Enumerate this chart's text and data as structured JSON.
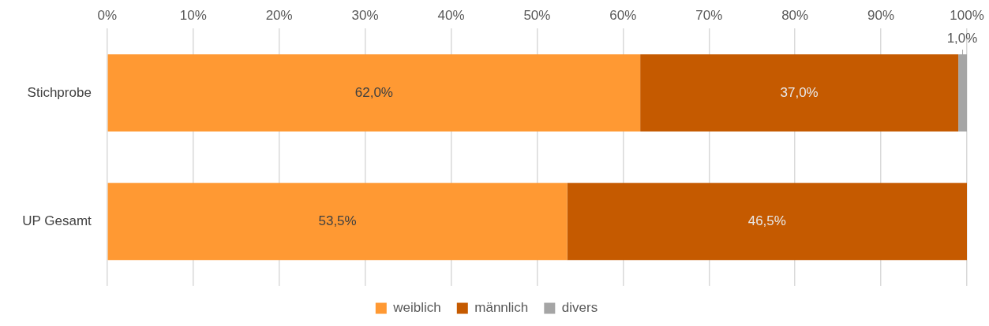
{
  "chart_data": {
    "type": "bar",
    "orientation": "horizontal",
    "stacked": true,
    "categories": [
      "Stichprobe",
      "UP Gesamt"
    ],
    "series": [
      {
        "name": "weiblich",
        "color": "#ff9933",
        "values": [
          62.0,
          53.5
        ],
        "value_labels": [
          "62,0%",
          "53,5%"
        ]
      },
      {
        "name": "männlich",
        "color": "#c55a00",
        "values": [
          37.0,
          46.5
        ],
        "value_labels": [
          "37,0%",
          "46,5%"
        ]
      },
      {
        "name": "divers",
        "color": "#a5a5a5",
        "values": [
          1.0,
          null
        ],
        "value_labels": [
          "1,0%",
          null
        ]
      }
    ],
    "xlim": [
      0,
      100
    ],
    "xticks": [
      {
        "value": 0,
        "label": "0%"
      },
      {
        "value": 10,
        "label": "10%"
      },
      {
        "value": 20,
        "label": "20%"
      },
      {
        "value": 30,
        "label": "30%"
      },
      {
        "value": 40,
        "label": "40%"
      },
      {
        "value": 50,
        "label": "50%"
      },
      {
        "value": 60,
        "label": "60%"
      },
      {
        "value": 70,
        "label": "70%"
      },
      {
        "value": 80,
        "label": "80%"
      },
      {
        "value": 90,
        "label": "90%"
      },
      {
        "value": 100,
        "label": "100%"
      }
    ],
    "grid": "x",
    "legend": "bottom"
  }
}
